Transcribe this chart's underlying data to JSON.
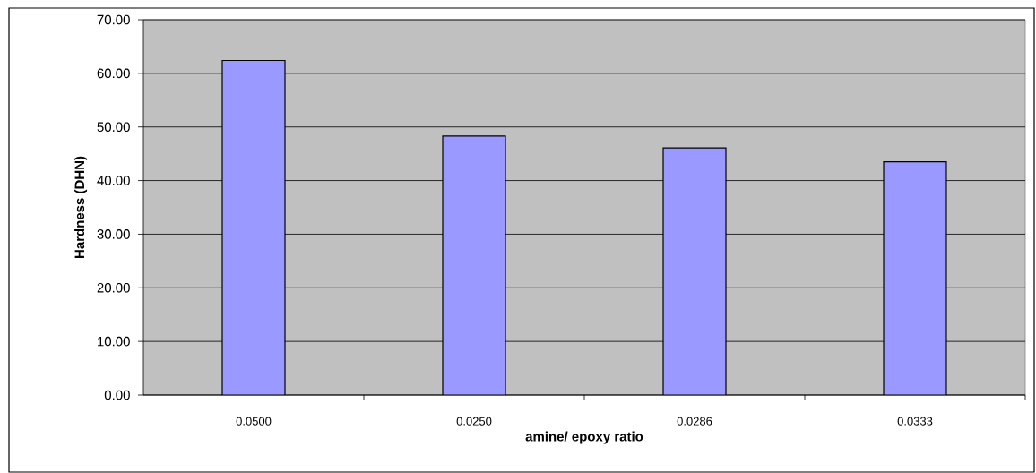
{
  "chart_data": {
    "type": "bar",
    "xlabel": "amine/ epoxy ratio",
    "ylabel": "Hardness (DHN)",
    "categories": [
      "0.0500",
      "0.0250",
      "0.0286",
      "0.0333"
    ],
    "values": [
      62.4,
      48.3,
      46.1,
      43.5
    ],
    "color": "#9999ff",
    "ylim": [
      0,
      70
    ],
    "yticks": [
      {
        "value": 0,
        "label": "0.00"
      },
      {
        "value": 10,
        "label": "10.00"
      },
      {
        "value": 20,
        "label": "20.00"
      },
      {
        "value": 30,
        "label": "30.00"
      },
      {
        "value": 40,
        "label": "40.00"
      },
      {
        "value": 50,
        "label": "50.00"
      },
      {
        "value": 60,
        "label": "60.00"
      },
      {
        "value": 70,
        "label": "70.00"
      }
    ],
    "grid": "y"
  }
}
